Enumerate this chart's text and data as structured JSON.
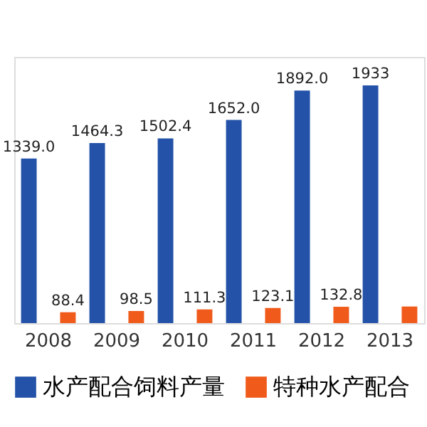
{
  "chart_data": {
    "type": "bar",
    "categories": [
      "2008",
      "2009",
      "2010",
      "2011",
      "2012",
      "2013"
    ],
    "series": [
      {
        "name": "水产配合饲料产量",
        "color": "#2352a8",
        "values": [
          1339.0,
          1464.3,
          1502.4,
          1652.0,
          1892.0,
          1933
        ],
        "value_labels": [
          "1339.0",
          "1464.3",
          "1502.4",
          "1652.0",
          "1892.0",
          "1933"
        ]
      },
      {
        "name": "特种水产配合",
        "color": "#f05a1a",
        "values": [
          88.4,
          98.5,
          111.3,
          123.1,
          132.8,
          135
        ],
        "value_labels": [
          "88.4",
          "98.5",
          "111.3",
          "123.1",
          "132.8",
          null
        ]
      }
    ],
    "legend": "bottom",
    "grid": false
  }
}
